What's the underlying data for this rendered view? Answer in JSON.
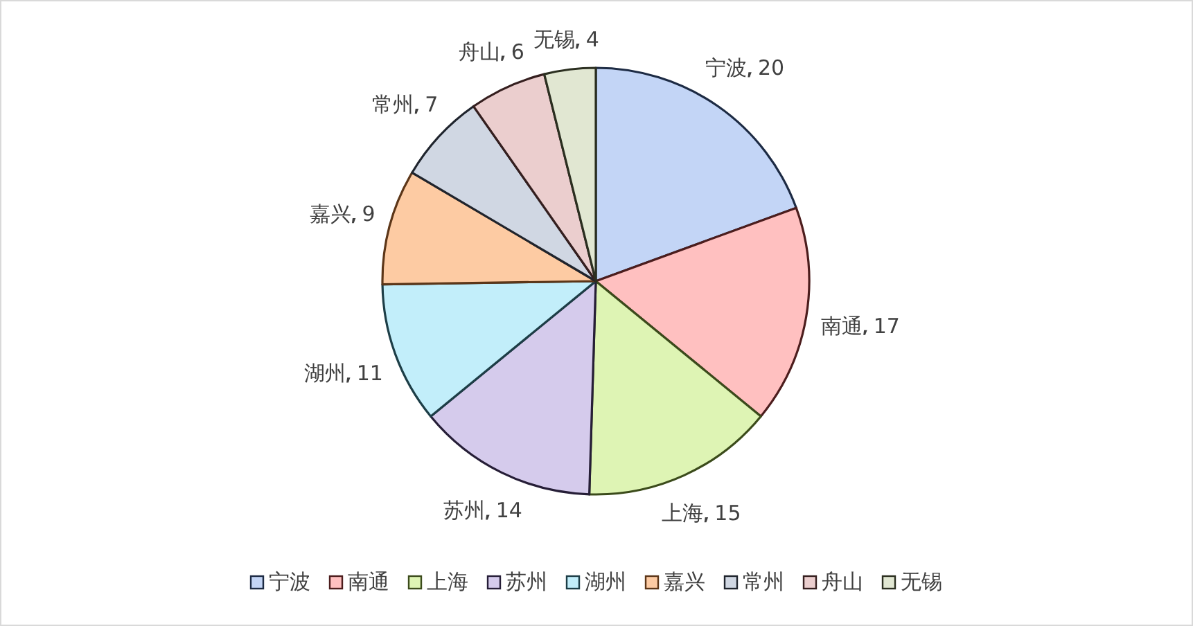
{
  "chart_data": {
    "type": "pie",
    "categories": [
      "宁波",
      "南通",
      "上海",
      "苏州",
      "湖州",
      "嘉兴",
      "常州",
      "舟山",
      "无锡"
    ],
    "values": [
      20,
      17,
      15,
      14,
      11,
      9,
      7,
      6,
      4
    ],
    "colors": [
      "#c3d5f6",
      "#ffc0c0",
      "#def4b4",
      "#d5cbec",
      "#c2eefa",
      "#fdcba3",
      "#d0d7e3",
      "#ebcece",
      "#e1e7d2"
    ],
    "data_labels": true,
    "legend": "bottom"
  }
}
